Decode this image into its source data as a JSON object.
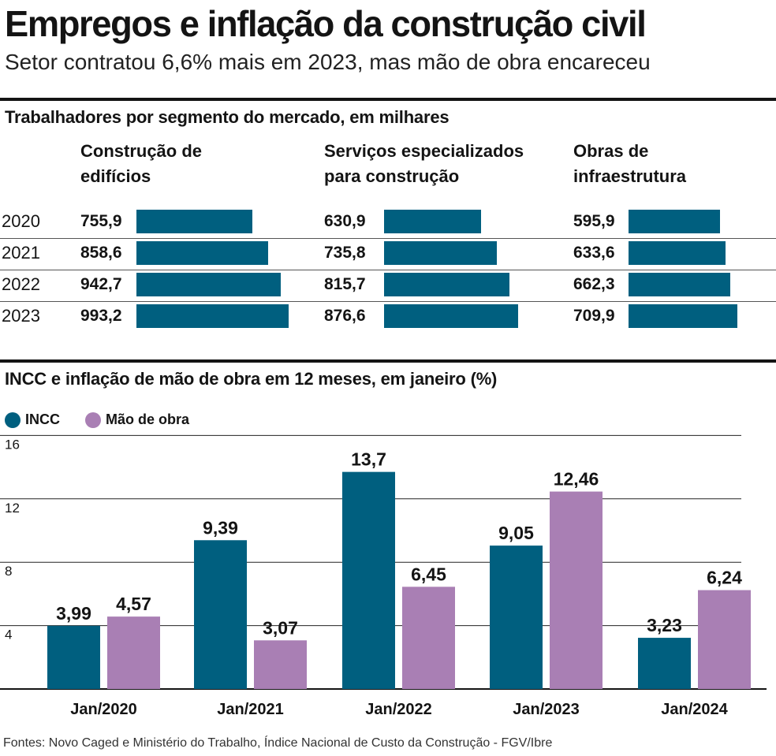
{
  "header": {
    "title": "Empregos e inflação da construção civil",
    "subtitle": "Setor contratou 6,6% mais em 2023, mas mão de obra encareceu"
  },
  "colors": {
    "incc": "#005f7f",
    "mao_de_obra": "#a97fb4",
    "bars": "#005f7f"
  },
  "footer": "Fontes: Novo Caged e Ministério do Trabalho,  Índice Nacional de Custo da Construção - FGV/Ibre",
  "chart_data": [
    {
      "type": "bar",
      "orientation": "horizontal",
      "title": "Trabalhadores por segmento do mercado, em milhares",
      "categories": [
        "2020",
        "2021",
        "2022",
        "2023"
      ],
      "series": [
        {
          "name": "Construção de edifícios",
          "head_lines": [
            "Construção de",
            "edifícios"
          ],
          "values": [
            755.9,
            858.6,
            942.7,
            993.2
          ],
          "labels": [
            "755,9",
            "858,6",
            "942,7",
            "993,2"
          ]
        },
        {
          "name": "Serviços especializados para construção",
          "head_lines": [
            "Serviços especializados",
            "para construção"
          ],
          "values": [
            630.9,
            735.8,
            815.7,
            876.6
          ],
          "labels": [
            "630,9",
            "735,8",
            "815,7",
            "876,6"
          ]
        },
        {
          "name": "Obras de infraestrutura",
          "head_lines": [
            "Obras de",
            "infraestrutura"
          ],
          "values": [
            595.9,
            633.6,
            662.3,
            709.9
          ],
          "labels": [
            "595,9",
            "633,6",
            "662,3",
            "709,9"
          ]
        }
      ]
    },
    {
      "type": "bar",
      "title": "INCC e inflação de mão de obra em 12 meses, em janeiro (%)",
      "categories": [
        "Jan/2020",
        "Jan/2021",
        "Jan/2022",
        "Jan/2023",
        "Jan/2024"
      ],
      "series": [
        {
          "name": "INCC",
          "values": [
            3.99,
            9.39,
            13.7,
            9.05,
            3.23
          ],
          "labels": [
            "3,99",
            "9,39",
            "13,7",
            "9,05",
            "3,23"
          ]
        },
        {
          "name": "Mão de obra",
          "values": [
            4.57,
            3.07,
            6.45,
            12.46,
            6.24
          ],
          "labels": [
            "4,57",
            "3,07",
            "6,45",
            "12,46",
            "6,24"
          ]
        }
      ],
      "ylim": [
        0,
        16
      ],
      "yticks": [
        4,
        8,
        12,
        16
      ],
      "ytick_labels": [
        "4",
        "8",
        "12",
        "16"
      ],
      "grid": true,
      "legend": "top-left"
    }
  ]
}
